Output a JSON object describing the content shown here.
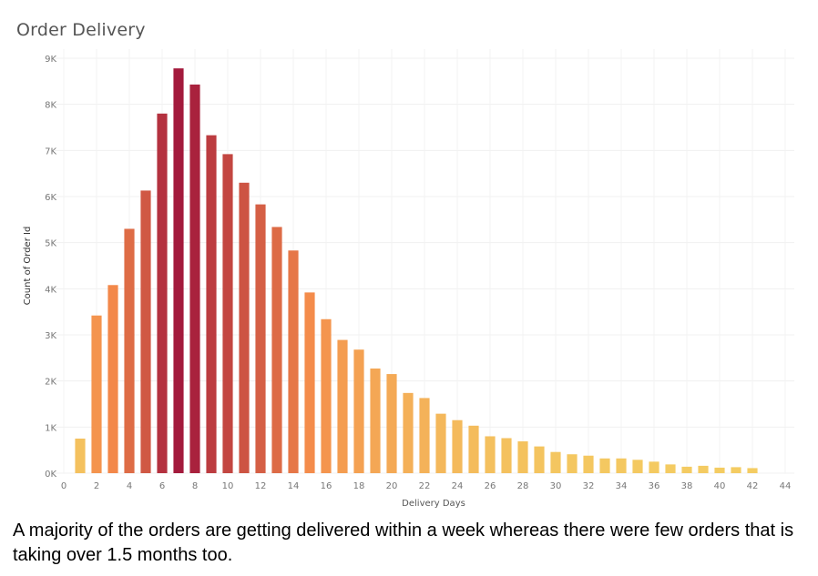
{
  "title": "Order Delivery",
  "caption": "A majority of the orders are getting delivered within a week whereas there were few orders that is taking over 1.5 months too.",
  "chart_data": {
    "type": "bar",
    "title": "Order Delivery",
    "xlabel": "Delivery Days",
    "ylabel": "Count of Order Id",
    "x": [
      1,
      2,
      3,
      4,
      5,
      6,
      7,
      8,
      9,
      10,
      11,
      12,
      13,
      14,
      15,
      16,
      17,
      18,
      19,
      20,
      21,
      22,
      23,
      24,
      25,
      26,
      27,
      28,
      29,
      30,
      31,
      32,
      33,
      34,
      35,
      36,
      37,
      38,
      39,
      40,
      41,
      42
    ],
    "values": [
      750,
      3420,
      4080,
      5300,
      6130,
      7800,
      8780,
      8430,
      7330,
      6920,
      6300,
      5830,
      5340,
      4830,
      3920,
      3340,
      2890,
      2680,
      2270,
      2150,
      1740,
      1630,
      1290,
      1150,
      1030,
      800,
      760,
      690,
      580,
      460,
      410,
      380,
      320,
      320,
      290,
      250,
      190,
      140,
      160,
      120,
      130,
      110
    ],
    "xlim": [
      0,
      44
    ],
    "ylim": [
      0,
      9000
    ],
    "x_ticks": [
      0,
      2,
      4,
      6,
      8,
      10,
      12,
      14,
      16,
      18,
      20,
      22,
      24,
      26,
      28,
      30,
      32,
      34,
      36,
      38,
      40,
      42,
      44
    ],
    "y_ticks": [
      {
        "value": 0,
        "label": "0K"
      },
      {
        "value": 1000,
        "label": "1K"
      },
      {
        "value": 2000,
        "label": "2K"
      },
      {
        "value": 3000,
        "label": "3K"
      },
      {
        "value": 4000,
        "label": "4K"
      },
      {
        "value": 5000,
        "label": "5K"
      },
      {
        "value": 6000,
        "label": "6K"
      },
      {
        "value": 7000,
        "label": "7K"
      },
      {
        "value": 8000,
        "label": "8K"
      },
      {
        "value": 9000,
        "label": "9K"
      }
    ],
    "grid": true,
    "color_scale": [
      "#f4cc62",
      "#f48a4a",
      "#a31a3c"
    ]
  }
}
